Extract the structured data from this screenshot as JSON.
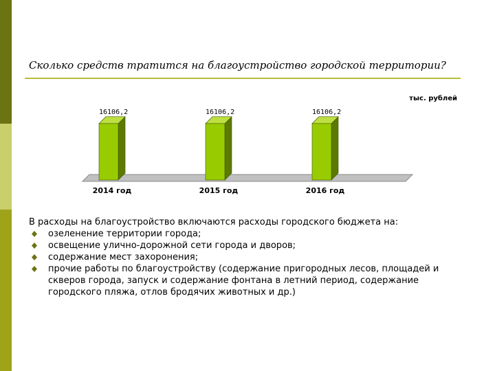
{
  "slide": {
    "title": "Сколько средств тратится на благоустройство городской территории?",
    "unit_label": "тыс. рублей",
    "intro": "В расходы на благоустройство включаются расходы городского бюджета на:",
    "bullets": [
      "озеленение территории города;",
      "освещение улично-дорожной сети города и дворов;",
      "содержание мест захоронения;",
      "прочие работы по благоустройству (содержание пригородных лесов, площадей и скверов города, запуск и содержание фонтана в летний период, содержание городского пляжа, отлов бродячих животных и др.)"
    ]
  },
  "colors": {
    "bar_front": "#99cc00",
    "bar_side": "#5c7a00",
    "bar_top": "#bde040",
    "floor": "#c0c0c0",
    "accent": "#9ea31a",
    "bullet": "#6b7312"
  },
  "icons": {
    "bullet": "diamond-bullet-icon"
  },
  "chart_data": {
    "type": "bar",
    "style": "3d-columns",
    "categories": [
      "2014 год",
      "2015 год",
      "2016 год"
    ],
    "values": [
      16106.2,
      16106.2,
      16106.2
    ],
    "data_labels": [
      "16106,2",
      "16106,2",
      "16106,2"
    ],
    "title": "",
    "xlabel": "",
    "ylabel": "тыс. рублей",
    "ylim": [
      0,
      20000
    ],
    "grid": false,
    "legend": "none"
  }
}
